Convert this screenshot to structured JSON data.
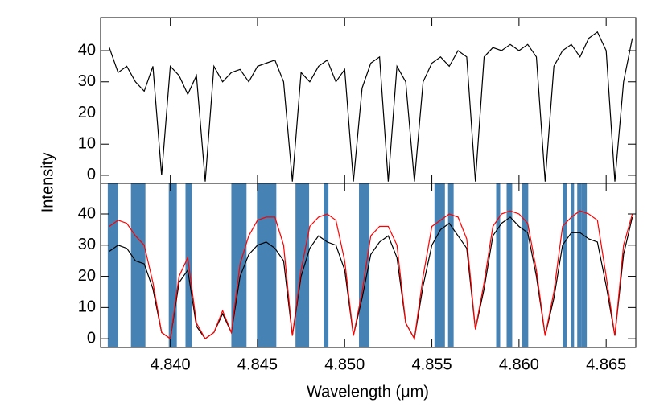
{
  "chart_data": [
    {
      "type": "line",
      "ylabel": "Intensity",
      "x": [
        4.8365,
        4.837,
        4.8375,
        4.838,
        4.8385,
        4.839,
        4.8395,
        4.84,
        4.8405,
        4.841,
        4.8415,
        4.842,
        4.8425,
        4.843,
        4.8435,
        4.844,
        4.8445,
        4.845,
        4.8455,
        4.846,
        4.8465,
        4.847,
        4.8475,
        4.848,
        4.8485,
        4.849,
        4.8495,
        4.85,
        4.8505,
        4.851,
        4.8515,
        4.852,
        4.8525,
        4.853,
        4.8535,
        4.854,
        4.8545,
        4.855,
        4.8555,
        4.856,
        4.8565,
        4.857,
        4.8575,
        4.858,
        4.8585,
        4.859,
        4.8595,
        4.86,
        4.8605,
        4.861,
        4.8615,
        4.862,
        4.8625,
        4.863,
        4.8635,
        4.864,
        4.8645,
        4.865,
        4.8655,
        4.866,
        4.8665
      ],
      "series": [
        {
          "color": "#000000",
          "values": [
            41,
            33,
            35,
            30,
            27,
            35,
            0,
            35,
            32,
            26,
            32,
            -2,
            35,
            30,
            33,
            34,
            30,
            35,
            36,
            37,
            30,
            -2,
            33,
            30,
            35,
            37,
            30,
            34,
            -2,
            28,
            36,
            38,
            -2,
            35,
            30,
            -2,
            30,
            36,
            38,
            35,
            40,
            38,
            -2,
            38,
            41,
            40,
            42,
            40,
            42,
            38,
            -2,
            35,
            40,
            42,
            38,
            44,
            46,
            40,
            -2,
            30,
            44
          ]
        }
      ],
      "xlim": [
        4.836,
        4.8667
      ],
      "ylim": [
        -2.6,
        50.6
      ],
      "yticks": [
        0,
        10,
        20,
        30,
        40
      ]
    },
    {
      "type": "line",
      "xlabel": "Wavelength (μm)",
      "x": [
        4.8365,
        4.837,
        4.8375,
        4.838,
        4.8385,
        4.839,
        4.8395,
        4.84,
        4.8405,
        4.841,
        4.8415,
        4.842,
        4.8425,
        4.843,
        4.8435,
        4.844,
        4.8445,
        4.845,
        4.8455,
        4.846,
        4.8465,
        4.847,
        4.8475,
        4.848,
        4.8485,
        4.849,
        4.8495,
        4.85,
        4.8505,
        4.851,
        4.8515,
        4.852,
        4.8525,
        4.853,
        4.8535,
        4.854,
        4.8545,
        4.855,
        4.8555,
        4.856,
        4.8565,
        4.857,
        4.8575,
        4.858,
        4.8585,
        4.859,
        4.8595,
        4.86,
        4.8605,
        4.861,
        4.8615,
        4.862,
        4.8625,
        4.863,
        4.8635,
        4.864,
        4.8645,
        4.865,
        4.8655,
        4.866,
        4.8665
      ],
      "bands": [
        [
          4.83641,
          4.83701
        ],
        [
          4.83774,
          4.83857
        ],
        [
          4.83991,
          4.84037
        ],
        [
          4.84087,
          4.84124
        ],
        [
          4.8435,
          4.84437
        ],
        [
          4.84497,
          4.84608
        ],
        [
          4.84718,
          4.84796
        ],
        [
          4.84879,
          4.84907
        ],
        [
          4.85082,
          4.85142
        ],
        [
          4.85515,
          4.85575
        ],
        [
          4.85593,
          4.85625
        ],
        [
          4.85869,
          4.85892
        ],
        [
          4.85929,
          4.85961
        ],
        [
          4.86017,
          4.86053
        ],
        [
          4.86251,
          4.86274
        ],
        [
          4.86297,
          4.86316
        ],
        [
          4.86334,
          4.86357
        ],
        [
          4.86357,
          4.86389
        ]
      ],
      "band_color": "#4682b4",
      "series": [
        {
          "color": "#000000",
          "values": [
            28,
            30,
            29,
            25,
            24,
            16,
            2,
            0,
            18,
            22,
            4,
            0,
            2,
            8,
            2,
            20,
            27,
            30,
            31,
            29,
            25,
            1,
            20,
            29,
            33,
            31,
            30,
            22,
            1,
            13,
            27,
            31,
            33,
            26,
            5,
            0,
            17,
            30,
            35,
            37,
            33,
            29,
            3,
            16,
            33,
            37,
            39,
            36,
            34,
            20,
            1,
            13,
            30,
            34,
            34,
            32,
            31,
            17,
            1,
            27,
            39
          ]
        },
        {
          "color": "#ff0000",
          "values": [
            36,
            38,
            37,
            33,
            30,
            18,
            2,
            0,
            20,
            26,
            5,
            0,
            2,
            9,
            2,
            24,
            33,
            38,
            39,
            39,
            30,
            1,
            22,
            36,
            39,
            40,
            38,
            25,
            1,
            15,
            33,
            36,
            36,
            30,
            5,
            0,
            20,
            36,
            38,
            40,
            39,
            32,
            3,
            18,
            36,
            40,
            41,
            40,
            37,
            22,
            1,
            15,
            36,
            39,
            41,
            40,
            38,
            20,
            1,
            30,
            40
          ]
        }
      ],
      "xlim": [
        4.836,
        4.8667
      ],
      "ylim": [
        -2.8,
        49.8
      ],
      "yticks": [
        0,
        10,
        20,
        30,
        40
      ],
      "xticks": [
        {
          "value": 4.84,
          "label": "4.840"
        },
        4.845,
        {
          "value": 4.85,
          "label": "4.850"
        },
        4.855,
        {
          "value": 4.86,
          "label": "4.860"
        },
        4.865
      ]
    }
  ]
}
